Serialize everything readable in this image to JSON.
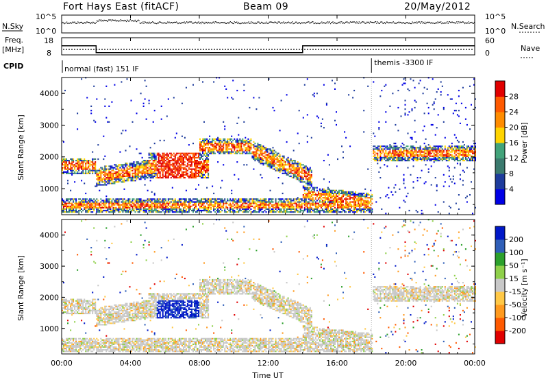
{
  "header": {
    "station": "Fort Hays East (fitACF)",
    "beam": "Beam 09",
    "date": "20/May/2012"
  },
  "strip_labels": {
    "nsky": "N.Sky",
    "nsky_ticks": [
      "10^5",
      "10^0"
    ],
    "nsearch": "N.Search",
    "nsearch_ticks": [
      "10^5",
      "10^0"
    ],
    "freq_line1": "Freq.",
    "freq_line2": "[MHz]",
    "freq_ticks": [
      "18",
      "8"
    ],
    "nave": "Nave",
    "nave_ticks": [
      "60",
      "0"
    ],
    "cpid": "CPID",
    "cpid_normal": "normal (fast) 151 IF",
    "cpid_themis": "themis -3300 IF"
  },
  "chart_data": [
    {
      "type": "line",
      "panel": "frequency_and_nave",
      "x_unit": "hours UT",
      "series": [
        {
          "values": [
            {
              "x": 0,
              "y": 14.5
            },
            {
              "x": 2.0,
              "y": 14.5
            },
            {
              "x": 2.0,
              "y": 10.5
            },
            {
              "x": 14.0,
              "y": 10.5
            },
            {
              "x": 14.0,
              "y": 14.5
            },
            {
              "x": 24,
              "y": 14.5
            }
          ]
        }
      ],
      "cpid_change_hours": 18.0
    },
    {
      "type": "heatmap",
      "panel": "power",
      "ylabel": "Slant Range [km]",
      "ylim": [
        180,
        4500
      ],
      "yticks": [
        "1000",
        "2000",
        "3000",
        "4000"
      ],
      "colorbar_label": "Power [dB]",
      "colorbar_ticks": [
        "4",
        "8",
        "12",
        "16",
        "20",
        "24",
        "28"
      ],
      "colorbar_colors": [
        "#0000e6",
        "#1e3c9c",
        "#3b7a6e",
        "#42a37a",
        "#ffd400",
        "#ff8c00",
        "#ff5a00",
        "#e10000"
      ]
    },
    {
      "type": "heatmap",
      "panel": "velocity",
      "ylabel": "Slant Range [km]",
      "ylim": [
        180,
        4500
      ],
      "yticks": [
        "1000",
        "2000",
        "3000",
        "4000"
      ],
      "xlabel": "Time UT",
      "xticks": [
        "00:00",
        "04:00",
        "08:00",
        "12:00",
        "16:00",
        "20:00",
        "00:00"
      ],
      "xlim": [
        0,
        24
      ],
      "colorbar_label": "Velocity [m s⁻¹]",
      "colorbar_ticks": [
        "200",
        "100",
        "50",
        "15",
        "-15",
        "-50",
        "-100",
        "-200"
      ],
      "colorbar_colors": [
        "#0018c8",
        "#2f5fb8",
        "#2ca02c",
        "#8fd04a",
        "#c8c8c8",
        "#ffc846",
        "#ff9a1e",
        "#ff5a00",
        "#e10000"
      ]
    }
  ]
}
